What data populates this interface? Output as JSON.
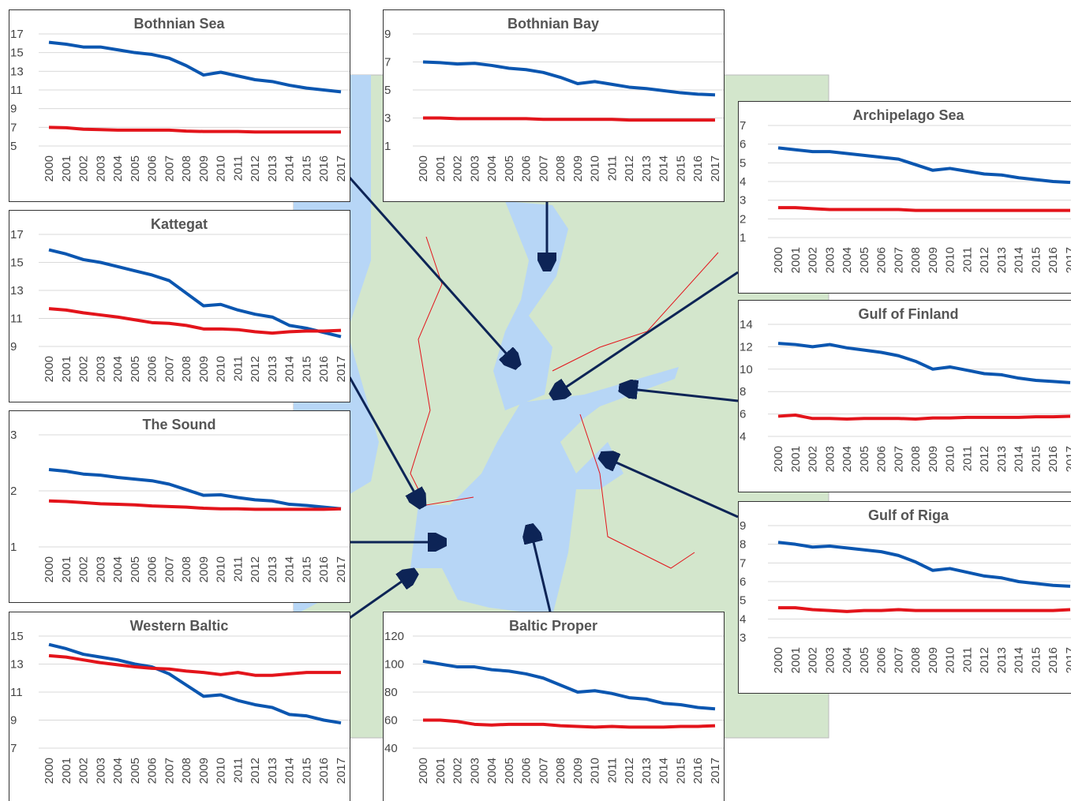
{
  "chart_data": [
    {
      "type": "line",
      "title": "Bothnian Sea",
      "categories": [
        "2000",
        "2001",
        "2002",
        "2003",
        "2004",
        "2005",
        "2006",
        "2007",
        "2008",
        "2009",
        "2010",
        "2011",
        "2012",
        "2013",
        "2014",
        "2015",
        "2016",
        "2017"
      ],
      "series": [
        {
          "color": "#0b56b0",
          "values": [
            16.1,
            15.9,
            15.6,
            15.6,
            15.3,
            15.0,
            14.8,
            14.4,
            13.6,
            12.6,
            12.9,
            12.5,
            12.1,
            11.9,
            11.5,
            11.2,
            11.0,
            10.8
          ]
        },
        {
          "color": "#e3141b",
          "values": [
            7.0,
            6.95,
            6.8,
            6.75,
            6.7,
            6.7,
            6.7,
            6.7,
            6.6,
            6.55,
            6.55,
            6.55,
            6.5,
            6.5,
            6.5,
            6.5,
            6.5,
            6.5
          ]
        }
      ],
      "ylim": [
        5,
        17
      ],
      "yticks": [
        5,
        7,
        9,
        11,
        13,
        15,
        17
      ],
      "grid": true
    },
    {
      "type": "line",
      "title": "Bothnian Bay",
      "categories": [
        "2000",
        "2001",
        "2002",
        "2003",
        "2004",
        "2005",
        "2006",
        "2007",
        "2008",
        "2009",
        "2010",
        "2011",
        "2012",
        "2013",
        "2014",
        "2015",
        "2016",
        "2017"
      ],
      "series": [
        {
          "color": "#0b56b0",
          "values": [
            7.0,
            6.95,
            6.85,
            6.9,
            6.75,
            6.55,
            6.45,
            6.25,
            5.9,
            5.45,
            5.6,
            5.4,
            5.2,
            5.1,
            4.95,
            4.8,
            4.7,
            4.65
          ]
        },
        {
          "color": "#e3141b",
          "values": [
            3.0,
            3.0,
            2.95,
            2.95,
            2.95,
            2.95,
            2.95,
            2.9,
            2.9,
            2.9,
            2.9,
            2.9,
            2.85,
            2.85,
            2.85,
            2.85,
            2.85,
            2.85
          ]
        }
      ],
      "ylim": [
        1,
        9
      ],
      "yticks": [
        1,
        3,
        5,
        7,
        9
      ],
      "grid": true
    },
    {
      "type": "line",
      "title": "Archipelago Sea",
      "categories": [
        "2000",
        "2001",
        "2002",
        "2003",
        "2004",
        "2005",
        "2006",
        "2007",
        "2008",
        "2009",
        "2010",
        "2011",
        "2012",
        "2013",
        "2014",
        "2015",
        "2016",
        "2017"
      ],
      "series": [
        {
          "color": "#0b56b0",
          "values": [
            5.8,
            5.7,
            5.6,
            5.6,
            5.5,
            5.4,
            5.3,
            5.2,
            4.9,
            4.6,
            4.7,
            4.55,
            4.4,
            4.35,
            4.2,
            4.1,
            4.0,
            3.95
          ]
        },
        {
          "color": "#e3141b",
          "values": [
            2.6,
            2.6,
            2.55,
            2.5,
            2.5,
            2.5,
            2.5,
            2.5,
            2.45,
            2.45,
            2.45,
            2.45,
            2.45,
            2.45,
            2.45,
            2.45,
            2.45,
            2.45
          ]
        }
      ],
      "ylim": [
        1,
        7
      ],
      "yticks": [
        1,
        2,
        3,
        4,
        5,
        6,
        7
      ],
      "grid": true
    },
    {
      "type": "line",
      "title": "Kattegat",
      "categories": [
        "2000",
        "2001",
        "2002",
        "2003",
        "2004",
        "2005",
        "2006",
        "2007",
        "2008",
        "2009",
        "2010",
        "2011",
        "2012",
        "2013",
        "2014",
        "2015",
        "2016",
        "2017"
      ],
      "series": [
        {
          "color": "#0b56b0",
          "values": [
            15.9,
            15.6,
            15.2,
            15.0,
            14.7,
            14.4,
            14.1,
            13.7,
            12.8,
            11.9,
            12.0,
            11.6,
            11.3,
            11.1,
            10.5,
            10.3,
            10.0,
            9.7
          ]
        },
        {
          "color": "#e3141b",
          "values": [
            11.7,
            11.6,
            11.4,
            11.25,
            11.1,
            10.9,
            10.7,
            10.65,
            10.5,
            10.25,
            10.25,
            10.2,
            10.05,
            9.95,
            10.05,
            10.1,
            10.1,
            10.15
          ]
        }
      ],
      "ylim": [
        9,
        17
      ],
      "yticks": [
        9,
        11,
        13,
        15,
        17
      ],
      "grid": true
    },
    {
      "type": "line",
      "title": "Gulf of Finland",
      "categories": [
        "2000",
        "2001",
        "2002",
        "2003",
        "2004",
        "2005",
        "2006",
        "2007",
        "2008",
        "2009",
        "2010",
        "2011",
        "2012",
        "2013",
        "2014",
        "2015",
        "2016",
        "2017"
      ],
      "series": [
        {
          "color": "#0b56b0",
          "values": [
            12.3,
            12.2,
            12.0,
            12.2,
            11.9,
            11.7,
            11.5,
            11.2,
            10.7,
            10.0,
            10.2,
            9.9,
            9.6,
            9.5,
            9.2,
            9.0,
            8.9,
            8.8
          ]
        },
        {
          "color": "#e3141b",
          "values": [
            5.8,
            5.9,
            5.6,
            5.6,
            5.55,
            5.6,
            5.6,
            5.6,
            5.55,
            5.65,
            5.65,
            5.7,
            5.7,
            5.7,
            5.7,
            5.75,
            5.75,
            5.8
          ]
        }
      ],
      "ylim": [
        4,
        14
      ],
      "yticks": [
        4,
        6,
        8,
        10,
        12,
        14
      ],
      "grid": true
    },
    {
      "type": "line",
      "title": "The Sound",
      "categories": [
        "2000",
        "2001",
        "2002",
        "2003",
        "2004",
        "2005",
        "2006",
        "2007",
        "2008",
        "2009",
        "2010",
        "2011",
        "2012",
        "2013",
        "2014",
        "2015",
        "2016",
        "2017"
      ],
      "series": [
        {
          "color": "#0b56b0",
          "values": [
            2.38,
            2.35,
            2.3,
            2.28,
            2.24,
            2.21,
            2.18,
            2.12,
            2.02,
            1.92,
            1.93,
            1.88,
            1.84,
            1.82,
            1.76,
            1.74,
            1.71,
            1.68
          ]
        },
        {
          "color": "#e3141b",
          "values": [
            1.82,
            1.81,
            1.79,
            1.77,
            1.76,
            1.75,
            1.73,
            1.72,
            1.71,
            1.69,
            1.68,
            1.68,
            1.67,
            1.67,
            1.67,
            1.67,
            1.67,
            1.68
          ]
        }
      ],
      "ylim": [
        1,
        3
      ],
      "yticks": [
        1,
        2,
        3
      ],
      "grid": true
    },
    {
      "type": "line",
      "title": "Gulf of Riga",
      "categories": [
        "2000",
        "2001",
        "2002",
        "2003",
        "2004",
        "2005",
        "2006",
        "2007",
        "2008",
        "2009",
        "2010",
        "2011",
        "2012",
        "2013",
        "2014",
        "2015",
        "2016",
        "2017"
      ],
      "series": [
        {
          "color": "#0b56b0",
          "values": [
            8.1,
            8.0,
            7.85,
            7.9,
            7.8,
            7.7,
            7.6,
            7.4,
            7.05,
            6.6,
            6.7,
            6.5,
            6.3,
            6.2,
            6.0,
            5.9,
            5.8,
            5.75
          ]
        },
        {
          "color": "#e3141b",
          "values": [
            4.6,
            4.6,
            4.5,
            4.45,
            4.4,
            4.45,
            4.45,
            4.5,
            4.45,
            4.45,
            4.45,
            4.45,
            4.45,
            4.45,
            4.45,
            4.45,
            4.45,
            4.5
          ]
        }
      ],
      "ylim": [
        3,
        9
      ],
      "yticks": [
        3,
        4,
        5,
        6,
        7,
        8,
        9
      ],
      "grid": true
    },
    {
      "type": "line",
      "title": "Western Baltic",
      "categories": [
        "2000",
        "2001",
        "2002",
        "2003",
        "2004",
        "2005",
        "2006",
        "2007",
        "2008",
        "2009",
        "2010",
        "2011",
        "2012",
        "2013",
        "2014",
        "2015",
        "2016",
        "2017"
      ],
      "series": [
        {
          "color": "#0b56b0",
          "values": [
            14.4,
            14.1,
            13.7,
            13.5,
            13.3,
            13.0,
            12.8,
            12.3,
            11.5,
            10.7,
            10.8,
            10.4,
            10.1,
            9.9,
            9.4,
            9.3,
            9.0,
            8.8
          ]
        },
        {
          "color": "#e3141b",
          "values": [
            13.6,
            13.5,
            13.3,
            13.1,
            12.95,
            12.8,
            12.7,
            12.65,
            12.5,
            12.4,
            12.25,
            12.4,
            12.2,
            12.2,
            12.3,
            12.4,
            12.4,
            12.4
          ]
        }
      ],
      "ylim": [
        7,
        15
      ],
      "yticks": [
        7,
        9,
        11,
        13,
        15
      ],
      "grid": true
    },
    {
      "type": "line",
      "title": "Baltic Proper",
      "categories": [
        "2000",
        "2001",
        "2002",
        "2003",
        "2004",
        "2005",
        "2006",
        "2007",
        "2008",
        "2009",
        "2010",
        "2011",
        "2012",
        "2013",
        "2014",
        "2015",
        "2016",
        "2017"
      ],
      "series": [
        {
          "color": "#0b56b0",
          "values": [
            102,
            100,
            98,
            98,
            96,
            95,
            93,
            90,
            85,
            80,
            81,
            79,
            76,
            75,
            72,
            71,
            69,
            68
          ]
        },
        {
          "color": "#e3141b",
          "values": [
            60,
            60,
            59,
            57,
            56.5,
            57,
            57,
            57,
            56,
            55.5,
            55,
            55.5,
            55,
            55,
            55,
            55.5,
            55.5,
            56
          ]
        }
      ],
      "ylim": [
        40,
        120
      ],
      "yticks": [
        40,
        60,
        80,
        100,
        120
      ],
      "grid": true
    }
  ]
}
